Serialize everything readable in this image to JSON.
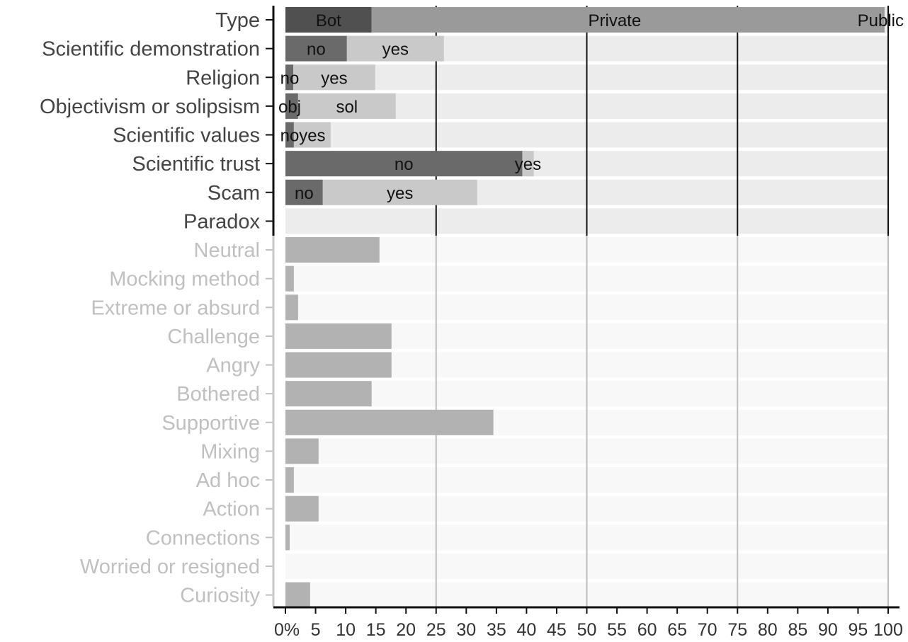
{
  "chart_data": {
    "type": "bar",
    "orientation": "horizontal",
    "x_ticks": [
      "0%",
      "5",
      "10",
      "15",
      "20",
      "25",
      "30",
      "35",
      "40",
      "45",
      "50",
      "55",
      "60",
      "65",
      "70",
      "75",
      "80",
      "85",
      "90",
      "95",
      "100"
    ],
    "xlim": [
      0,
      100
    ],
    "grid": "vertical lines at 25, 50, 75, 100",
    "highlighted_rows": [
      {
        "label": "Type",
        "segments": [
          {
            "label": "Bot",
            "value": 14.3
          },
          {
            "label": "Private",
            "value": 84.6
          },
          {
            "label": "Public",
            "value": 0.5
          }
        ]
      },
      {
        "label": "Scientific demonstration",
        "segments": [
          {
            "label": "no",
            "value": 10.2
          },
          {
            "label": "yes",
            "value": 16.1
          }
        ]
      },
      {
        "label": "Religion",
        "segments": [
          {
            "label": "no",
            "value": 1.3
          },
          {
            "label": "yes",
            "value": 13.6
          }
        ]
      },
      {
        "label": "Objectivism or solipsism",
        "segments": [
          {
            "label": "obj",
            "value": 2.1
          },
          {
            "label": "sol",
            "value": 16.2
          }
        ]
      },
      {
        "label": "Scientific values",
        "segments": [
          {
            "label": "no",
            "value": 1.4
          },
          {
            "label": "yes",
            "value": 6.1
          }
        ]
      },
      {
        "label": "Scientific trust",
        "segments": [
          {
            "label": "no",
            "value": 39.3
          },
          {
            "label": "yes",
            "value": 1.9
          }
        ]
      },
      {
        "label": "Scam",
        "segments": [
          {
            "label": "no",
            "value": 6.2
          },
          {
            "label": "yes",
            "value": 25.6
          }
        ]
      },
      {
        "label": "Paradox",
        "segments": []
      }
    ],
    "muted_rows": [
      {
        "label": "Neutral",
        "value": 15.6
      },
      {
        "label": "Mocking method",
        "value": 1.4
      },
      {
        "label": "Extreme or absurd",
        "value": 2.1
      },
      {
        "label": "Challenge",
        "value": 17.6
      },
      {
        "label": "Angry",
        "value": 17.6
      },
      {
        "label": "Bothered",
        "value": 14.3
      },
      {
        "label": "Supportive",
        "value": 34.5
      },
      {
        "label": "Mixing",
        "value": 5.5
      },
      {
        "label": "Ad hoc",
        "value": 1.4
      },
      {
        "label": "Action",
        "value": 5.5
      },
      {
        "label": "Connections",
        "value": 0.7
      },
      {
        "label": "Worried or resigned",
        "value": 0
      },
      {
        "label": "Curiosity",
        "value": 4.1
      }
    ],
    "colors": {
      "panel_bg": "#ececec",
      "muted_panel_bg": "#f8f8f8",
      "dark_segment": "#505050",
      "mid_segment": "#6a6a6a",
      "light_segment": "#c9c9c9",
      "type_private": "#9a9a9a",
      "muted_bar": "#b2b2b2",
      "label_dark": "#444444",
      "label_muted": "#c0c0c0"
    }
  }
}
